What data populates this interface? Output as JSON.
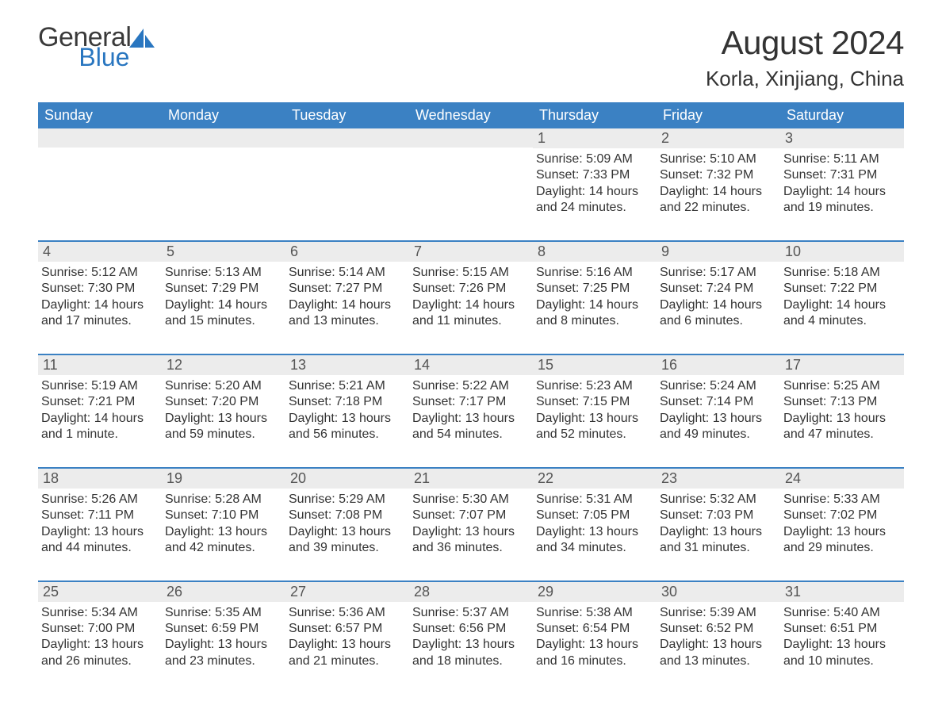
{
  "brand": {
    "word1": "General",
    "word2": "Blue",
    "sail_color": "#2976c0"
  },
  "title": "August 2024",
  "location": "Korla, Xinjiang, China",
  "colors": {
    "header_bg": "#3b81c3",
    "header_text": "#ffffff",
    "daynum_bg": "#ececec",
    "rule": "#3b81c3",
    "body_text": "#333333"
  },
  "dow": [
    "Sunday",
    "Monday",
    "Tuesday",
    "Wednesday",
    "Thursday",
    "Friday",
    "Saturday"
  ],
  "weeks": [
    [
      {
        "blank": true
      },
      {
        "blank": true
      },
      {
        "blank": true
      },
      {
        "blank": true
      },
      {
        "n": "1",
        "sunrise": "5:09 AM",
        "sunset": "7:33 PM",
        "daylight": "14 hours and 24 minutes."
      },
      {
        "n": "2",
        "sunrise": "5:10 AM",
        "sunset": "7:32 PM",
        "daylight": "14 hours and 22 minutes."
      },
      {
        "n": "3",
        "sunrise": "5:11 AM",
        "sunset": "7:31 PM",
        "daylight": "14 hours and 19 minutes."
      }
    ],
    [
      {
        "n": "4",
        "sunrise": "5:12 AM",
        "sunset": "7:30 PM",
        "daylight": "14 hours and 17 minutes."
      },
      {
        "n": "5",
        "sunrise": "5:13 AM",
        "sunset": "7:29 PM",
        "daylight": "14 hours and 15 minutes."
      },
      {
        "n": "6",
        "sunrise": "5:14 AM",
        "sunset": "7:27 PM",
        "daylight": "14 hours and 13 minutes."
      },
      {
        "n": "7",
        "sunrise": "5:15 AM",
        "sunset": "7:26 PM",
        "daylight": "14 hours and 11 minutes."
      },
      {
        "n": "8",
        "sunrise": "5:16 AM",
        "sunset": "7:25 PM",
        "daylight": "14 hours and 8 minutes."
      },
      {
        "n": "9",
        "sunrise": "5:17 AM",
        "sunset": "7:24 PM",
        "daylight": "14 hours and 6 minutes."
      },
      {
        "n": "10",
        "sunrise": "5:18 AM",
        "sunset": "7:22 PM",
        "daylight": "14 hours and 4 minutes."
      }
    ],
    [
      {
        "n": "11",
        "sunrise": "5:19 AM",
        "sunset": "7:21 PM",
        "daylight": "14 hours and 1 minute."
      },
      {
        "n": "12",
        "sunrise": "5:20 AM",
        "sunset": "7:20 PM",
        "daylight": "13 hours and 59 minutes."
      },
      {
        "n": "13",
        "sunrise": "5:21 AM",
        "sunset": "7:18 PM",
        "daylight": "13 hours and 56 minutes."
      },
      {
        "n": "14",
        "sunrise": "5:22 AM",
        "sunset": "7:17 PM",
        "daylight": "13 hours and 54 minutes."
      },
      {
        "n": "15",
        "sunrise": "5:23 AM",
        "sunset": "7:15 PM",
        "daylight": "13 hours and 52 minutes."
      },
      {
        "n": "16",
        "sunrise": "5:24 AM",
        "sunset": "7:14 PM",
        "daylight": "13 hours and 49 minutes."
      },
      {
        "n": "17",
        "sunrise": "5:25 AM",
        "sunset": "7:13 PM",
        "daylight": "13 hours and 47 minutes."
      }
    ],
    [
      {
        "n": "18",
        "sunrise": "5:26 AM",
        "sunset": "7:11 PM",
        "daylight": "13 hours and 44 minutes."
      },
      {
        "n": "19",
        "sunrise": "5:28 AM",
        "sunset": "7:10 PM",
        "daylight": "13 hours and 42 minutes."
      },
      {
        "n": "20",
        "sunrise": "5:29 AM",
        "sunset": "7:08 PM",
        "daylight": "13 hours and 39 minutes."
      },
      {
        "n": "21",
        "sunrise": "5:30 AM",
        "sunset": "7:07 PM",
        "daylight": "13 hours and 36 minutes."
      },
      {
        "n": "22",
        "sunrise": "5:31 AM",
        "sunset": "7:05 PM",
        "daylight": "13 hours and 34 minutes."
      },
      {
        "n": "23",
        "sunrise": "5:32 AM",
        "sunset": "7:03 PM",
        "daylight": "13 hours and 31 minutes."
      },
      {
        "n": "24",
        "sunrise": "5:33 AM",
        "sunset": "7:02 PM",
        "daylight": "13 hours and 29 minutes."
      }
    ],
    [
      {
        "n": "25",
        "sunrise": "5:34 AM",
        "sunset": "7:00 PM",
        "daylight": "13 hours and 26 minutes."
      },
      {
        "n": "26",
        "sunrise": "5:35 AM",
        "sunset": "6:59 PM",
        "daylight": "13 hours and 23 minutes."
      },
      {
        "n": "27",
        "sunrise": "5:36 AM",
        "sunset": "6:57 PM",
        "daylight": "13 hours and 21 minutes."
      },
      {
        "n": "28",
        "sunrise": "5:37 AM",
        "sunset": "6:56 PM",
        "daylight": "13 hours and 18 minutes."
      },
      {
        "n": "29",
        "sunrise": "5:38 AM",
        "sunset": "6:54 PM",
        "daylight": "13 hours and 16 minutes."
      },
      {
        "n": "30",
        "sunrise": "5:39 AM",
        "sunset": "6:52 PM",
        "daylight": "13 hours and 13 minutes."
      },
      {
        "n": "31",
        "sunrise": "5:40 AM",
        "sunset": "6:51 PM",
        "daylight": "13 hours and 10 minutes."
      }
    ]
  ],
  "labels": {
    "sunrise": "Sunrise: ",
    "sunset": "Sunset: ",
    "daylight": "Daylight: "
  }
}
